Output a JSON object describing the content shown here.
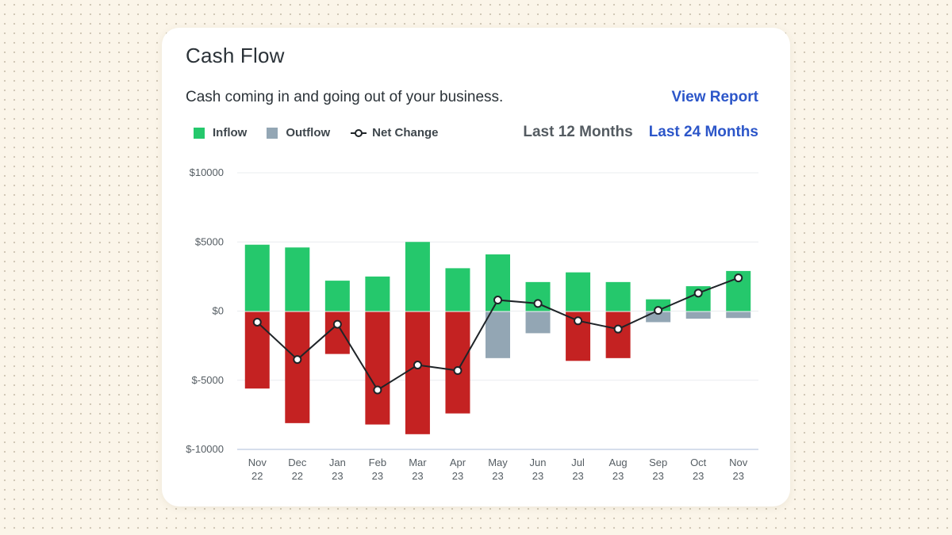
{
  "card": {
    "title": "Cash Flow",
    "subtitle": "Cash coming in and going out of your business.",
    "view_report": "View Report"
  },
  "legend": {
    "inflow": "Inflow",
    "outflow": "Outflow",
    "net_change": "Net Change"
  },
  "range_toggle": {
    "last_12": "Last 12 Months",
    "last_24": "Last 24 Months"
  },
  "colors": {
    "inflow": "#25c86c",
    "outflow_large": "#c42222",
    "outflow_small": "#93a6b4",
    "net_line": "#1f2428",
    "link": "#2c56c9"
  },
  "chart_data": {
    "type": "bar",
    "categories": [
      [
        "Nov",
        "22"
      ],
      [
        "Dec",
        "22"
      ],
      [
        "Jan",
        "23"
      ],
      [
        "Feb",
        "23"
      ],
      [
        "Mar",
        "23"
      ],
      [
        "Apr",
        "23"
      ],
      [
        "May",
        "23"
      ],
      [
        "Jun",
        "23"
      ],
      [
        "Jul",
        "23"
      ],
      [
        "Aug",
        "23"
      ],
      [
        "Sep",
        "23"
      ],
      [
        "Oct",
        "23"
      ],
      [
        "Nov",
        "23"
      ]
    ],
    "series": [
      {
        "name": "Inflow",
        "values": [
          4800,
          4600,
          2200,
          2500,
          5000,
          3100,
          4100,
          2100,
          2800,
          2100,
          850,
          1800,
          2900
        ]
      },
      {
        "name": "Outflow",
        "values": [
          -5600,
          -8100,
          -3100,
          -8200,
          -8900,
          -7400,
          -3400,
          -1600,
          -3600,
          -3400,
          -800,
          -550,
          -500
        ]
      },
      {
        "name": "Net Change",
        "values": [
          -800,
          -3500,
          -950,
          -5700,
          -3900,
          -4300,
          800,
          550,
          -700,
          -1300,
          50,
          1300,
          2400
        ]
      }
    ],
    "y_ticks": [
      "$10000",
      "$5000",
      "$0",
      "$-5000",
      "$-10000"
    ],
    "ylim": [
      -10000,
      10000
    ],
    "grid": true,
    "legend_position": "top-left"
  }
}
